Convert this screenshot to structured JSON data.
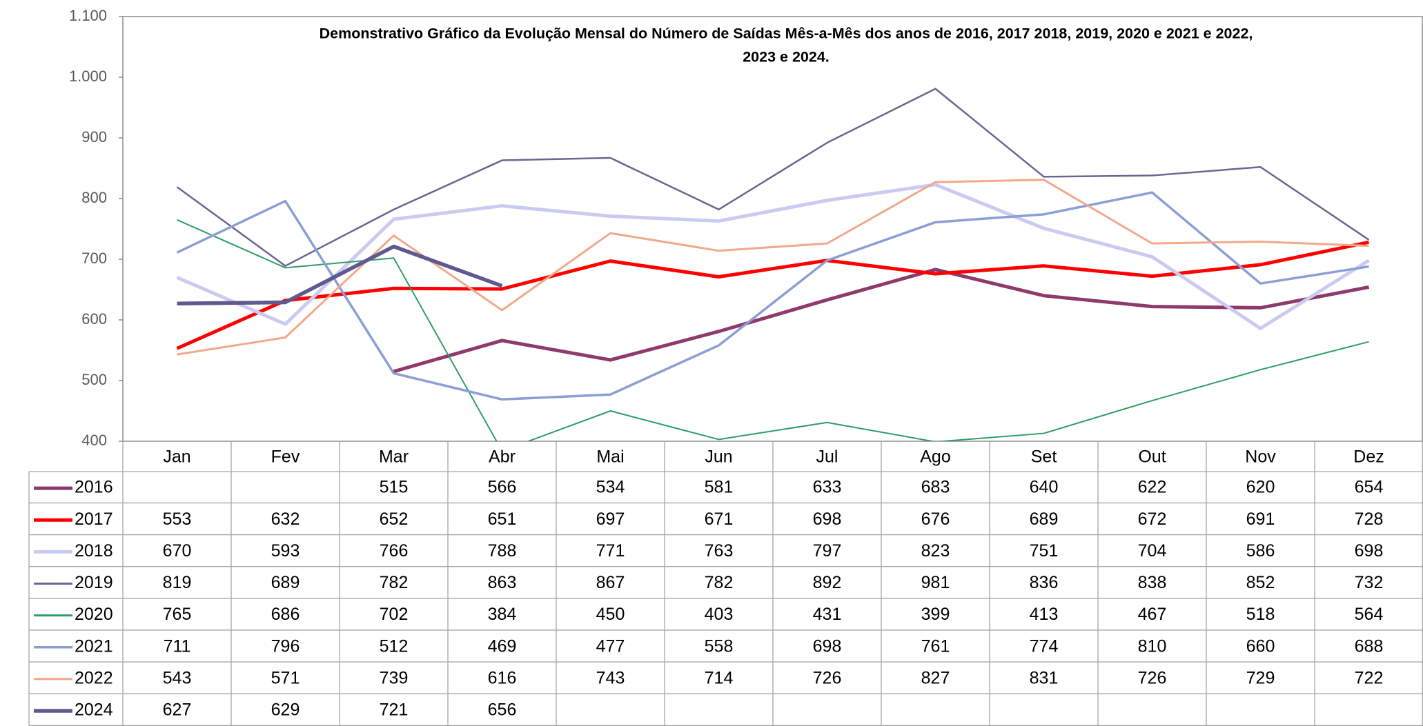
{
  "chart_data": {
    "type": "line",
    "title": [
      "Demonstrativo Gráfico da Evolução Mensal do Número de Saídas Mês-a-Mês dos anos de  2016, 2017 2018, 2019, 2020 e 2021 e 2022,",
      "2023 e 2024."
    ],
    "categories": [
      "Jan",
      "Fev",
      "Mar",
      "Abr",
      "Mai",
      "Jun",
      "Jul",
      "Ago",
      "Set",
      "Out",
      "Nov",
      "Dez"
    ],
    "series": [
      {
        "name": "2016",
        "color": "#8e3a6b",
        "values": [
          null,
          null,
          515,
          566,
          534,
          581,
          633,
          683,
          640,
          622,
          620,
          654
        ]
      },
      {
        "name": "2017",
        "color": "#ff0000",
        "values": [
          553,
          632,
          652,
          651,
          697,
          671,
          698,
          676,
          689,
          672,
          691,
          728
        ]
      },
      {
        "name": "2018",
        "color": "#cbcbf2",
        "values": [
          670,
          593,
          766,
          788,
          771,
          763,
          797,
          823,
          751,
          704,
          586,
          698
        ]
      },
      {
        "name": "2019",
        "color": "#6b6591",
        "values": [
          819,
          689,
          782,
          863,
          867,
          782,
          892,
          981,
          836,
          838,
          852,
          732
        ]
      },
      {
        "name": "2020",
        "color": "#2e9e64",
        "values": [
          765,
          686,
          702,
          384,
          450,
          403,
          431,
          399,
          413,
          467,
          518,
          564
        ]
      },
      {
        "name": "2021",
        "color": "#8b9fd4",
        "values": [
          711,
          796,
          512,
          469,
          477,
          558,
          698,
          761,
          774,
          810,
          660,
          688
        ]
      },
      {
        "name": "2022",
        "color": "#f2a88a",
        "values": [
          543,
          571,
          739,
          616,
          743,
          714,
          726,
          827,
          831,
          726,
          729,
          722
        ]
      },
      {
        "name": "2024",
        "color": "#5e5a8e",
        "values": [
          627,
          629,
          721,
          656,
          null,
          null,
          null,
          null,
          null,
          null,
          null,
          null
        ]
      }
    ],
    "ylim": [
      400,
      1100
    ],
    "yticks": [
      400,
      500,
      600,
      700,
      800,
      900,
      {
        "value": 1000,
        "label": "1.000"
      },
      {
        "value": 1100,
        "label": "1.100"
      }
    ],
    "grid": false,
    "legend": "table"
  }
}
